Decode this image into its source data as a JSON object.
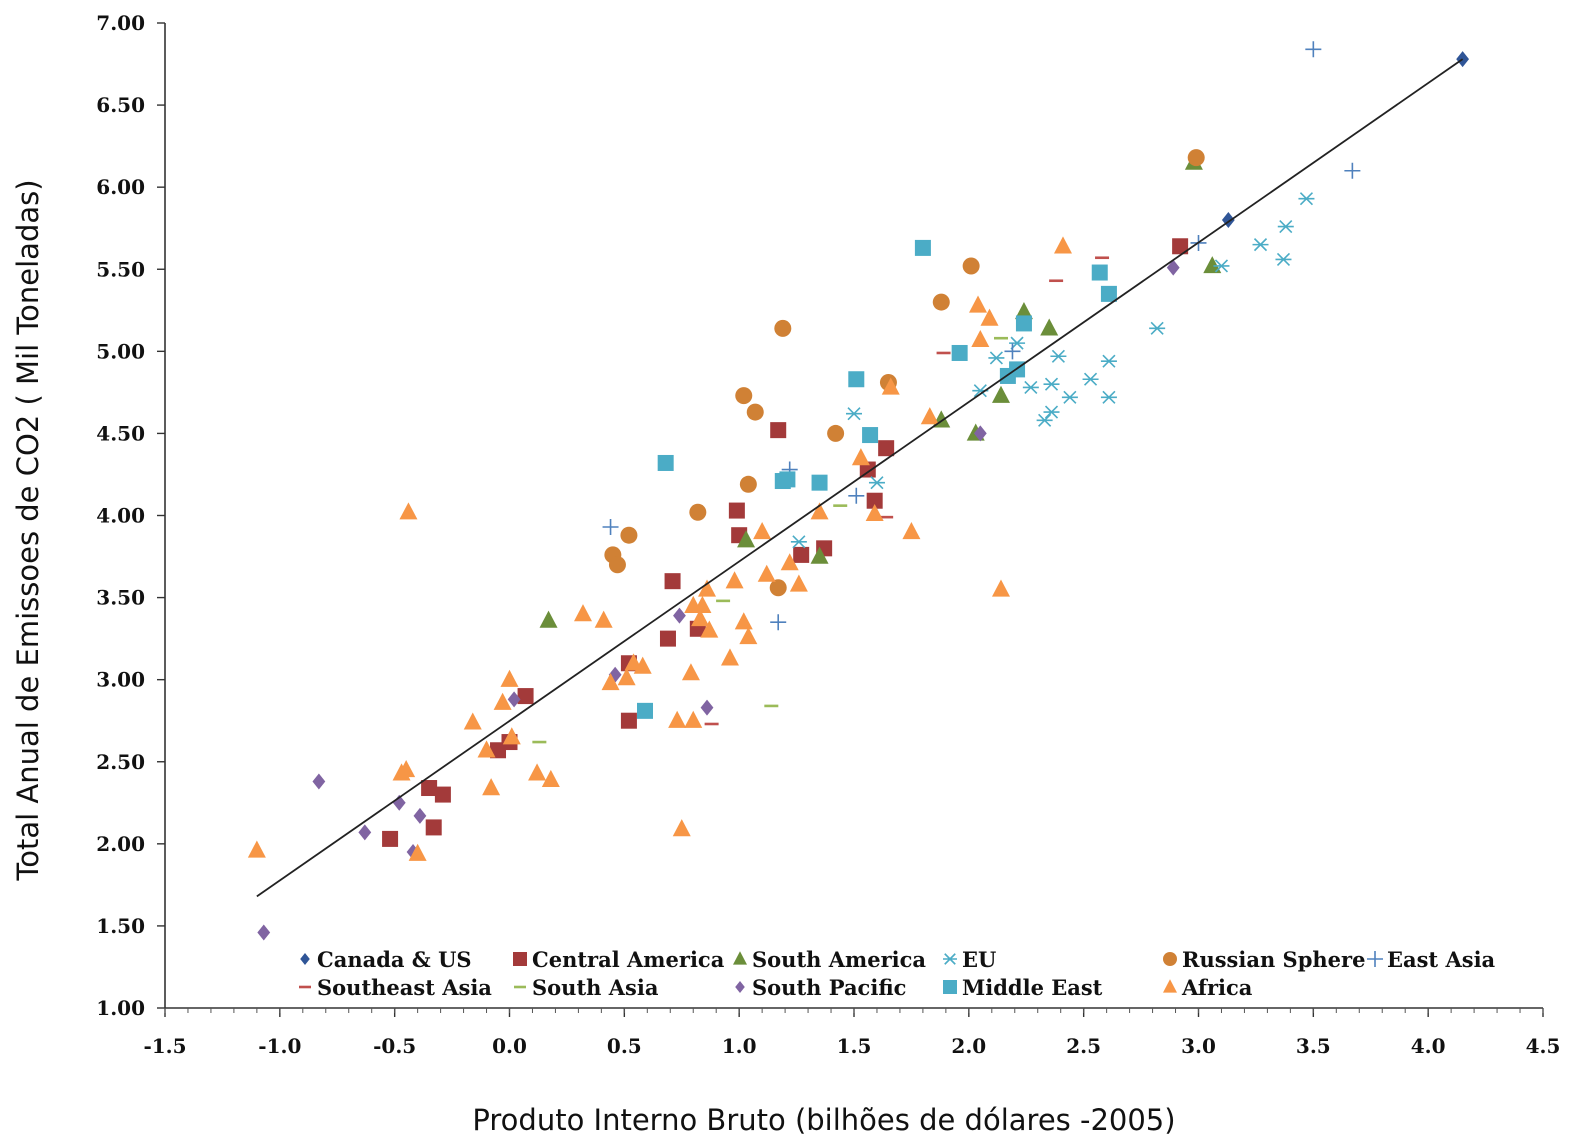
{
  "chart_data": {
    "type": "scatter",
    "title": "",
    "xlabel": "Produto Interno Bruto (bilhões de dólares -2005)",
    "ylabel": "Total Anual de Emissoes de CO2 ( Mil Toneladas)",
    "xlim": [
      -1.5,
      4.5
    ],
    "ylim": [
      1.0,
      7.0
    ],
    "xticks": [
      "-1.5",
      "-1.0",
      "-0.5",
      "0.0",
      "0.5",
      "1.0",
      "1.5",
      "2.0",
      "2.5",
      "3.0",
      "3.5",
      "4.0",
      "4.5"
    ],
    "yticks": [
      "1.00",
      "1.50",
      "2.00",
      "2.50",
      "3.00",
      "3.50",
      "4.00",
      "4.50",
      "5.00",
      "5.50",
      "6.00",
      "6.50",
      "7.00"
    ],
    "grid": false,
    "legend_position": "bottom",
    "trendline": {
      "x": [
        -1.1,
        4.15
      ],
      "y": [
        1.68,
        6.78
      ]
    },
    "series": [
      {
        "name": "Canada & US",
        "marker": "diamond",
        "color": "#2f5597",
        "points": [
          [
            4.15,
            6.78
          ],
          [
            3.13,
            5.8
          ]
        ]
      },
      {
        "name": "Central America",
        "marker": "square",
        "color": "#a33a3a",
        "points": [
          [
            -0.52,
            2.03
          ],
          [
            -0.35,
            2.34
          ],
          [
            -0.33,
            2.1
          ],
          [
            -0.29,
            2.3
          ],
          [
            -0.05,
            2.57
          ],
          [
            0.0,
            2.62
          ],
          [
            0.07,
            2.9
          ],
          [
            0.52,
            2.75
          ],
          [
            0.52,
            3.1
          ],
          [
            0.69,
            3.25
          ],
          [
            0.71,
            3.6
          ],
          [
            0.82,
            3.31
          ],
          [
            0.99,
            4.03
          ],
          [
            1.0,
            3.88
          ],
          [
            1.17,
            4.52
          ],
          [
            1.27,
            3.76
          ],
          [
            1.37,
            3.8
          ],
          [
            1.56,
            4.28
          ],
          [
            1.59,
            4.09
          ],
          [
            1.64,
            4.41
          ],
          [
            2.92,
            5.64
          ]
        ]
      },
      {
        "name": "South America",
        "marker": "triangle",
        "color": "#6b8e3a",
        "points": [
          [
            0.17,
            3.36
          ],
          [
            1.03,
            3.85
          ],
          [
            1.35,
            3.75
          ],
          [
            1.88,
            4.58
          ],
          [
            2.03,
            4.5
          ],
          [
            2.14,
            4.73
          ],
          [
            2.24,
            5.24
          ],
          [
            2.35,
            5.14
          ],
          [
            3.06,
            5.52
          ],
          [
            2.98,
            6.15
          ]
        ]
      },
      {
        "name": "EU",
        "marker": "asterisk",
        "color": "#4bacc6",
        "points": [
          [
            1.26,
            3.84
          ],
          [
            1.5,
            4.62
          ],
          [
            1.6,
            4.2
          ],
          [
            2.05,
            4.76
          ],
          [
            2.12,
            4.96
          ],
          [
            2.21,
            5.05
          ],
          [
            2.27,
            4.78
          ],
          [
            2.33,
            4.58
          ],
          [
            2.36,
            4.63
          ],
          [
            2.36,
            4.8
          ],
          [
            2.39,
            4.97
          ],
          [
            2.44,
            4.72
          ],
          [
            2.53,
            4.83
          ],
          [
            2.61,
            4.72
          ],
          [
            2.61,
            4.94
          ],
          [
            2.82,
            5.14
          ],
          [
            3.1,
            5.52
          ],
          [
            3.27,
            5.65
          ],
          [
            3.37,
            5.56
          ],
          [
            3.38,
            5.76
          ],
          [
            3.47,
            5.93
          ]
        ]
      },
      {
        "name": "Russian Sphere",
        "marker": "circle",
        "color": "#d08135",
        "points": [
          [
            0.45,
            3.76
          ],
          [
            0.47,
            3.7
          ],
          [
            0.52,
            3.88
          ],
          [
            0.82,
            4.02
          ],
          [
            1.02,
            4.73
          ],
          [
            1.04,
            4.19
          ],
          [
            1.07,
            4.63
          ],
          [
            1.17,
            3.56
          ],
          [
            1.19,
            5.14
          ],
          [
            1.42,
            4.5
          ],
          [
            1.65,
            4.81
          ],
          [
            1.88,
            5.3
          ],
          [
            2.01,
            5.52
          ],
          [
            2.99,
            6.18
          ]
        ]
      },
      {
        "name": "East Asia",
        "marker": "plus",
        "color": "#4f81bd",
        "points": [
          [
            0.44,
            3.93
          ],
          [
            1.17,
            3.35
          ],
          [
            1.22,
            4.28
          ],
          [
            1.51,
            4.12
          ],
          [
            2.19,
            5.0
          ],
          [
            3.0,
            5.66
          ],
          [
            3.5,
            6.84
          ],
          [
            3.67,
            6.1
          ]
        ]
      },
      {
        "name": "Southeast Asia",
        "marker": "dash",
        "color": "#c0504d",
        "points": [
          [
            0.88,
            2.73
          ],
          [
            1.64,
            3.99
          ],
          [
            1.89,
            4.99
          ],
          [
            2.38,
            5.43
          ],
          [
            2.58,
            5.57
          ]
        ]
      },
      {
        "name": "South Asia",
        "marker": "dash",
        "color": "#9bbb59",
        "points": [
          [
            0.13,
            2.62
          ],
          [
            0.93,
            3.48
          ],
          [
            1.14,
            2.84
          ],
          [
            1.44,
            4.06
          ],
          [
            2.14,
            5.08
          ]
        ]
      },
      {
        "name": "South Pacific",
        "marker": "diamond",
        "color": "#8064a2",
        "points": [
          [
            -1.07,
            1.46
          ],
          [
            -0.83,
            2.38
          ],
          [
            -0.63,
            2.07
          ],
          [
            -0.48,
            2.25
          ],
          [
            -0.39,
            2.17
          ],
          [
            -0.42,
            1.95
          ],
          [
            0.02,
            2.88
          ],
          [
            0.46,
            3.03
          ],
          [
            0.74,
            3.39
          ],
          [
            0.86,
            2.83
          ],
          [
            2.05,
            4.5
          ],
          [
            2.89,
            5.51
          ]
        ]
      },
      {
        "name": "Middle East",
        "marker": "square",
        "color": "#4bacc6",
        "points": [
          [
            0.59,
            2.81
          ],
          [
            0.68,
            4.32
          ],
          [
            1.19,
            4.21
          ],
          [
            1.21,
            4.22
          ],
          [
            1.35,
            4.2
          ],
          [
            1.51,
            4.83
          ],
          [
            1.57,
            4.49
          ],
          [
            1.8,
            5.63
          ],
          [
            1.96,
            4.99
          ],
          [
            2.17,
            4.85
          ],
          [
            2.21,
            4.89
          ],
          [
            2.24,
            5.17
          ],
          [
            2.57,
            5.48
          ],
          [
            2.61,
            5.35
          ]
        ]
      },
      {
        "name": "Africa",
        "marker": "triangle",
        "color": "#f79646",
        "points": [
          [
            -1.1,
            1.96
          ],
          [
            -0.47,
            2.43
          ],
          [
            -0.45,
            2.45
          ],
          [
            -0.44,
            4.02
          ],
          [
            -0.4,
            1.94
          ],
          [
            -0.16,
            2.74
          ],
          [
            -0.1,
            2.57
          ],
          [
            -0.08,
            2.34
          ],
          [
            -0.03,
            2.86
          ],
          [
            0.0,
            3.0
          ],
          [
            0.01,
            2.65
          ],
          [
            0.12,
            2.43
          ],
          [
            0.18,
            2.39
          ],
          [
            0.32,
            3.4
          ],
          [
            0.41,
            3.36
          ],
          [
            0.44,
            2.98
          ],
          [
            0.51,
            3.01
          ],
          [
            0.54,
            3.1
          ],
          [
            0.58,
            3.08
          ],
          [
            0.73,
            2.75
          ],
          [
            0.75,
            2.09
          ],
          [
            0.79,
            3.04
          ],
          [
            0.8,
            3.45
          ],
          [
            0.8,
            2.75
          ],
          [
            0.83,
            3.37
          ],
          [
            0.84,
            3.45
          ],
          [
            0.86,
            3.55
          ],
          [
            0.87,
            3.3
          ],
          [
            0.96,
            3.13
          ],
          [
            0.98,
            3.6
          ],
          [
            1.02,
            3.35
          ],
          [
            1.04,
            3.26
          ],
          [
            1.1,
            3.9
          ],
          [
            1.12,
            3.64
          ],
          [
            1.22,
            3.71
          ],
          [
            1.26,
            3.58
          ],
          [
            1.35,
            4.02
          ],
          [
            1.53,
            4.35
          ],
          [
            1.59,
            4.01
          ],
          [
            1.66,
            4.78
          ],
          [
            1.75,
            3.9
          ],
          [
            1.83,
            4.6
          ],
          [
            2.04,
            5.28
          ],
          [
            2.05,
            5.07
          ],
          [
            2.09,
            5.2
          ],
          [
            2.14,
            3.55
          ],
          [
            2.41,
            5.64
          ]
        ]
      }
    ]
  }
}
